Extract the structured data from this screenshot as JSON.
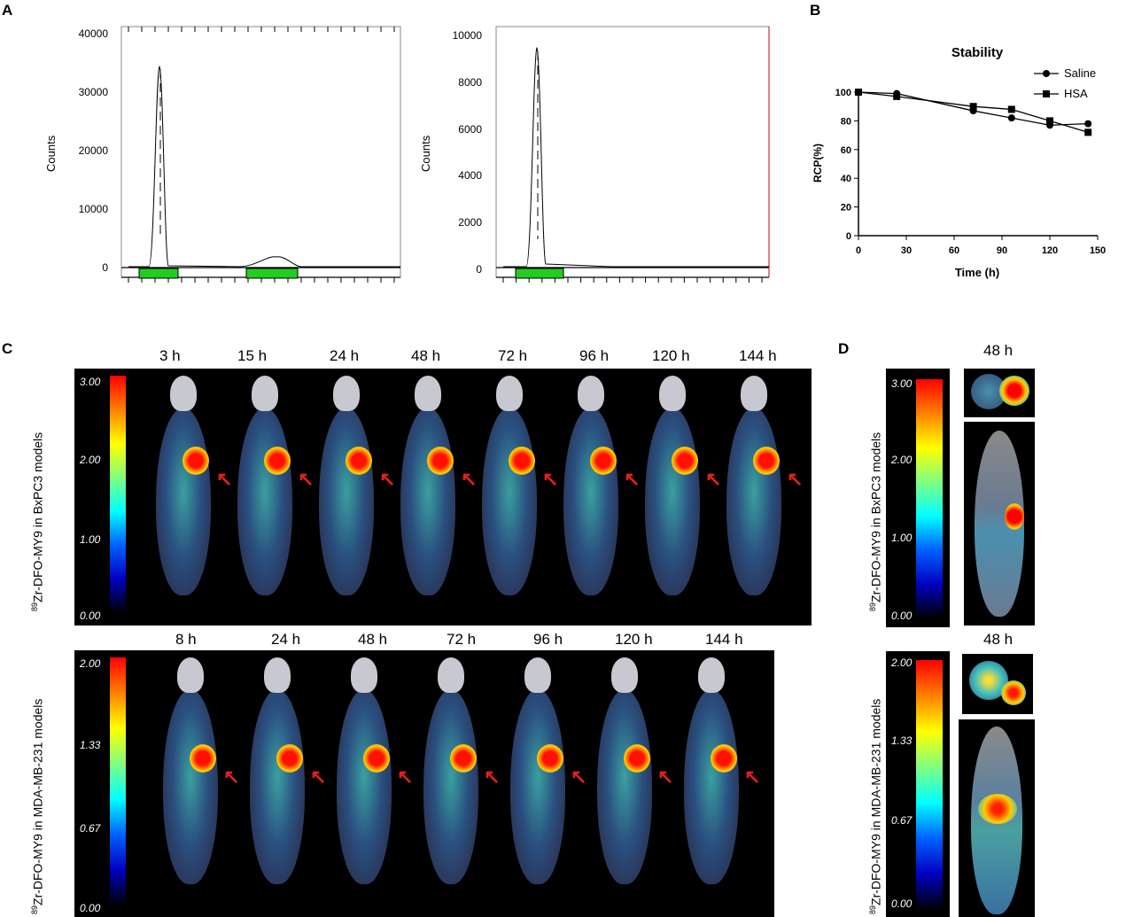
{
  "panel_labels": {
    "a": "A",
    "b": "B",
    "c": "C",
    "d": "D"
  },
  "panel_a": {
    "left": {
      "ylabel": "Counts",
      "yticks": [
        "40000",
        "30000",
        "20000",
        "10000",
        "0"
      ]
    },
    "right": {
      "ylabel": "Counts",
      "yticks": [
        "10000",
        "8000",
        "6000",
        "4000",
        "2000",
        "0"
      ]
    }
  },
  "chart_data": {
    "type": "line",
    "title": "Stability",
    "xlabel": "Time (h)",
    "ylabel": "RCP(%)",
    "xlim": [
      0,
      150
    ],
    "ylim": [
      0,
      100
    ],
    "xticks": [
      "0",
      "30",
      "60",
      "90",
      "120",
      "150"
    ],
    "yticks": [
      "0",
      "20",
      "40",
      "60",
      "80",
      "100"
    ],
    "legend_position": "top-right",
    "series": [
      {
        "name": "Saline",
        "marker": "circle",
        "x": [
          0,
          24,
          72,
          96,
          120,
          144
        ],
        "y": [
          100,
          99,
          87,
          82,
          77,
          78
        ]
      },
      {
        "name": "HSA",
        "marker": "square",
        "x": [
          0,
          24,
          72,
          96,
          120,
          144
        ],
        "y": [
          100,
          97,
          90,
          88,
          80,
          72
        ]
      }
    ]
  },
  "panel_c": {
    "top": {
      "ylabel_sup": "89",
      "ylabel": "Zr-DFO-MY9 in BxPC3 models",
      "timepoints": [
        "3 h",
        "15 h",
        "24 h",
        "48 h",
        "72 h",
        "96 h",
        "120 h",
        "144 h"
      ],
      "scale": [
        "3.00",
        "2.00",
        "1.00",
        "0.00"
      ]
    },
    "bottom": {
      "ylabel_sup": "89",
      "ylabel": "Zr-DFO-MY9 in MDA-MB-231 models",
      "timepoints": [
        "8 h",
        "24 h",
        "48 h",
        "72 h",
        "96 h",
        "120 h",
        "144 h"
      ],
      "scale": [
        "2.00",
        "1.33",
        "0.67",
        "0.00"
      ]
    }
  },
  "panel_d": {
    "top": {
      "ylabel_sup": "89",
      "ylabel": "Zr-DFO-MY9 in BxPC3 models",
      "timepoint": "48 h",
      "scale": [
        "3.00",
        "2.00",
        "1.00",
        "0.00"
      ]
    },
    "bottom": {
      "ylabel_sup": "89",
      "ylabel": "Zr-DFO-MY9 in MDA-MB-231 models",
      "timepoint": "48 h",
      "scale": [
        "2.00",
        "1.33",
        "0.67",
        "0.00"
      ]
    }
  },
  "colors": {
    "saline": "#000000",
    "hsa": "#000000",
    "region": "#22cc22",
    "arrow": "#e02020"
  }
}
